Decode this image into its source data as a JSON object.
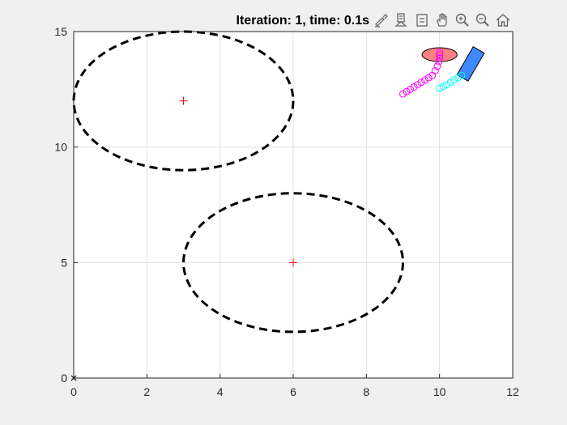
{
  "title": "Iteration: 1, time: 0.1s",
  "toolbar": {
    "icons": [
      "brush-icon",
      "data-tips-icon",
      "legend-icon",
      "pan-icon",
      "zoom-in-icon",
      "zoom-out-icon",
      "home-icon"
    ]
  },
  "chart_data": {
    "type": "scatter",
    "title": "Iteration: 1, time: 0.1s",
    "xlabel": "",
    "ylabel": "",
    "xlim": [
      0,
      12
    ],
    "ylim": [
      0,
      15
    ],
    "grid": true,
    "x_ticks": [
      0,
      2,
      4,
      6,
      8,
      10,
      12
    ],
    "y_ticks": [
      0,
      5,
      10,
      15
    ],
    "obstacles": [
      {
        "name": "ellipse-1",
        "center": [
          3,
          12
        ],
        "radius_x": 3,
        "radius_y": 3,
        "style": "dashed",
        "color": "#000000"
      },
      {
        "name": "ellipse-2",
        "center": [
          6,
          5
        ],
        "radius_x": 3,
        "radius_y": 3,
        "style": "dashed",
        "color": "#000000"
      }
    ],
    "centers": [
      [
        3,
        12
      ],
      [
        6,
        5
      ]
    ],
    "origin_marker": [
      0,
      0
    ],
    "trajectories": [
      {
        "name": "agent-1-trail",
        "color": "#ff00ff",
        "x": [
          9.0,
          9.1,
          9.2,
          9.3,
          9.4,
          9.5,
          9.6,
          9.7,
          9.8,
          9.88,
          9.94,
          9.98,
          10.0,
          10.0,
          10.0
        ],
        "y": [
          12.3,
          12.4,
          12.5,
          12.6,
          12.7,
          12.8,
          12.9,
          13.0,
          13.1,
          13.3,
          13.5,
          13.7,
          13.85,
          14.0,
          14.1
        ]
      },
      {
        "name": "agent-2-trail",
        "color": "#00ffff",
        "x": [
          10.0,
          10.1,
          10.2,
          10.3,
          10.4,
          10.5,
          10.6
        ],
        "y": [
          12.55,
          12.62,
          12.7,
          12.8,
          12.9,
          13.0,
          13.1
        ]
      }
    ],
    "agents": [
      {
        "name": "round-robot",
        "shape": "ellipse",
        "center": [
          10,
          14
        ],
        "radius_x": 0.3,
        "radius_y": 0.3,
        "fill": "#ff6b6b"
      },
      {
        "name": "rect-robot",
        "shape": "rotated-rectangle",
        "center": [
          10.85,
          13.6
        ],
        "length": 1.4,
        "width": 0.35,
        "angle_deg": 60,
        "fill": "#2b7bff"
      }
    ]
  }
}
